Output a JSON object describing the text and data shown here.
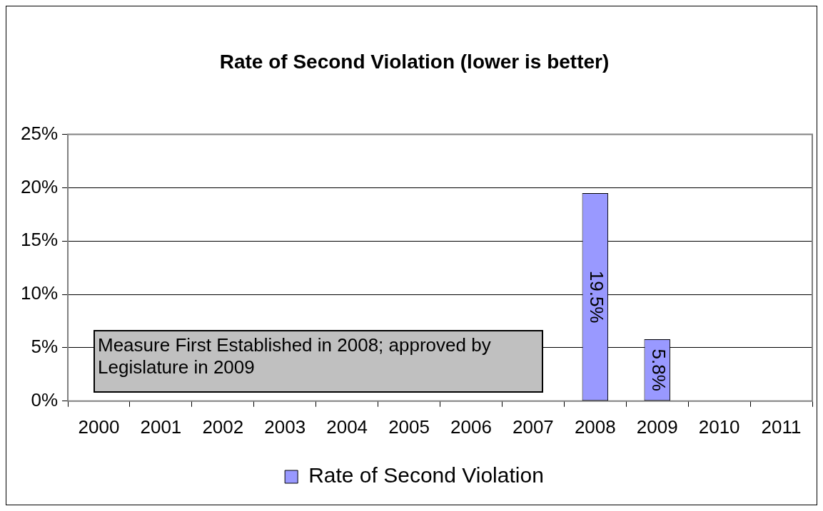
{
  "chart_data": {
    "type": "bar",
    "title": "Rate of Second Violation (lower is better)",
    "categories": [
      "2000",
      "2001",
      "2002",
      "2003",
      "2004",
      "2005",
      "2006",
      "2007",
      "2008",
      "2009",
      "2010",
      "2011"
    ],
    "series": [
      {
        "name": "Rate of Second Violation",
        "color": "#9999ff",
        "values": [
          null,
          null,
          null,
          null,
          null,
          null,
          null,
          null,
          19.5,
          5.8,
          null,
          null
        ],
        "value_labels": [
          null,
          null,
          null,
          null,
          null,
          null,
          null,
          null,
          "19.5%",
          "5.8%",
          null,
          null
        ]
      }
    ],
    "ylim": [
      0,
      25
    ],
    "yticks": [
      {
        "value": 0,
        "label": "0%"
      },
      {
        "value": 5,
        "label": "5%"
      },
      {
        "value": 10,
        "label": "10%"
      },
      {
        "value": 15,
        "label": "15%"
      },
      {
        "value": 20,
        "label": "20%"
      },
      {
        "value": 25,
        "label": "25%"
      }
    ],
    "grid": "y",
    "legend": "bottom",
    "annotations": [
      "Measure First Established in 2008; approved by Legislature in 2009"
    ]
  }
}
